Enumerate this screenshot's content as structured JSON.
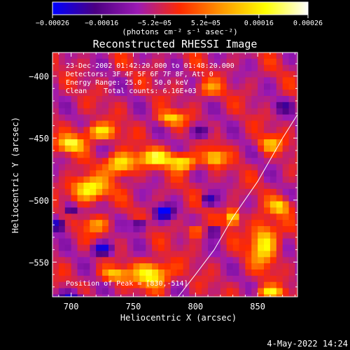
{
  "chart_data": {
    "type": "heatmap",
    "title": "Reconstructed RHESSI Image",
    "xlabel": "Heliocentric X (arcsec)",
    "ylabel": "Heliocentric Y (arcsec)",
    "xlim": [
      685,
      882
    ],
    "ylim": [
      -578,
      -381
    ],
    "x_ticks": [
      700,
      750,
      800,
      850
    ],
    "y_ticks": [
      -400,
      -450,
      -500,
      -550
    ],
    "x_tick_labels": [
      "700",
      "750",
      "800",
      "850"
    ],
    "y_tick_labels": [
      "−400",
      "−450",
      "−500",
      "−550"
    ],
    "colorbar": {
      "range": [
        -0.00026,
        0.00026
      ],
      "ticks": [
        -0.00026,
        -0.00016,
        -5.2e-05,
        5.2e-05,
        0.00016,
        0.00026
      ],
      "tick_labels": [
        "−0.00026",
        "−0.00016",
        "−5.2e−05",
        "5.2e−05",
        "0.00016",
        "0.00026"
      ],
      "unit_label": "(photons cm⁻² s⁻¹ asec⁻²)",
      "colors": [
        "#0000ff",
        "#4b0082",
        "#9b1ab4",
        "#ff2a00",
        "#ff9a00",
        "#ffff00",
        "#ffffff"
      ]
    },
    "info_lines": [
      "23-Dec-2002 01:42:20.000 to 01:48:20.000",
      "Detectors: 3F 4F 5F 6F 7F 8F, Att 0",
      "Energy Range: 25.0 - 50.0 keV",
      "Clean    Total counts: 6.16E+03"
    ],
    "peak_label": "Position of Peak = [830,-514]",
    "peak": {
      "x": 830,
      "y": -514
    },
    "limb": [
      [
        786,
        -578
      ],
      [
        800,
        -560
      ],
      [
        815,
        -540
      ],
      [
        830,
        -514
      ],
      [
        850,
        -485
      ],
      [
        870,
        -450
      ],
      [
        882,
        -431
      ]
    ],
    "hotspots": [
      {
        "x": 700,
        "y": -455,
        "value": 0.00024,
        "rx": 10,
        "ry": 6
      },
      {
        "x": 723,
        "y": -445,
        "value": 0.00021,
        "rx": 12,
        "ry": 6
      },
      {
        "x": 714,
        "y": -491,
        "value": 0.00025,
        "rx": 14,
        "ry": 9
      },
      {
        "x": 740,
        "y": -471,
        "value": 0.00024,
        "rx": 11,
        "ry": 8
      },
      {
        "x": 768,
        "y": -466,
        "value": 0.00022,
        "rx": 14,
        "ry": 6
      },
      {
        "x": 790,
        "y": -470,
        "value": 0.00023,
        "rx": 10,
        "ry": 6
      },
      {
        "x": 815,
        "y": -466,
        "value": 0.00021,
        "rx": 8,
        "ry": 6
      },
      {
        "x": 780,
        "y": -434,
        "value": 0.00019,
        "rx": 10,
        "ry": 5
      },
      {
        "x": 830,
        "y": -514,
        "value": 0.00026,
        "rx": 5,
        "ry": 6
      },
      {
        "x": 855,
        "y": -535,
        "value": 0.00023,
        "rx": 10,
        "ry": 16
      },
      {
        "x": 868,
        "y": -505,
        "value": 0.00019,
        "rx": 8,
        "ry": 6
      },
      {
        "x": 765,
        "y": -560,
        "value": 0.00026,
        "rx": 13,
        "ry": 9
      },
      {
        "x": 735,
        "y": -560,
        "value": 0.00019,
        "rx": 10,
        "ry": 5
      },
      {
        "x": 860,
        "y": -455,
        "value": 0.00016,
        "rx": 9,
        "ry": 6
      },
      {
        "x": 810,
        "y": -410,
        "value": 0.00012,
        "rx": 10,
        "ry": 6
      },
      {
        "x": 720,
        "y": -520,
        "value": 0.00014,
        "rx": 10,
        "ry": 6
      },
      {
        "x": 800,
        "y": -525,
        "value": 0.00015,
        "rx": 6,
        "ry": 5
      },
      {
        "x": 860,
        "y": -575,
        "value": 0.00021,
        "rx": 10,
        "ry": 5
      }
    ],
    "coldspots": [
      {
        "x": 700,
        "y": -580,
        "value": -0.0002,
        "rx": 10,
        "ry": 6
      },
      {
        "x": 725,
        "y": -540,
        "value": -0.00022,
        "rx": 8,
        "ry": 5
      },
      {
        "x": 775,
        "y": -510,
        "value": -0.00024,
        "rx": 7,
        "ry": 5
      },
      {
        "x": 755,
        "y": -520,
        "value": -0.0002,
        "rx": 6,
        "ry": 4
      },
      {
        "x": 810,
        "y": -500,
        "value": -0.00018,
        "rx": 5,
        "ry": 4
      },
      {
        "x": 690,
        "y": -520,
        "value": -0.0002,
        "rx": 6,
        "ry": 5
      },
      {
        "x": 700,
        "y": -508,
        "value": -0.00018,
        "rx": 5,
        "ry": 4
      },
      {
        "x": 815,
        "y": -525,
        "value": -0.00018,
        "rx": 5,
        "ry": 4
      },
      {
        "x": 805,
        "y": -445,
        "value": -0.00014,
        "rx": 8,
        "ry": 5
      },
      {
        "x": 870,
        "y": -425,
        "value": -0.0001,
        "rx": 8,
        "ry": 5
      }
    ]
  },
  "footer": {
    "timestamp": "4-May-2022 14:24"
  }
}
